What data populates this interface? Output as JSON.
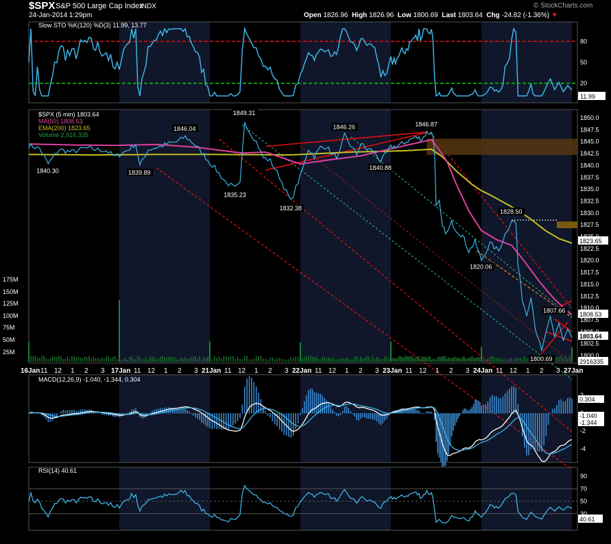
{
  "header": {
    "symbol": "$SPX",
    "name": "S&P 500 Large Cap Index",
    "exchange": "INDX",
    "timestamp": "24-Jan-2014 1:29pm",
    "open_label": "Open",
    "open": "1826.96",
    "high_label": "High",
    "high": "1826.96",
    "low_label": "Low",
    "low": "1800.69",
    "last_label": "Last",
    "last": "1803.64",
    "chg_label": "Chg",
    "chg": "-24.82 (-1.36%)",
    "chg_arrow": "▼",
    "watermark": "© StockCharts.com"
  },
  "colors": {
    "background": "#000000",
    "shade": "#10172a",
    "price": "#3fb6e8",
    "ma50": "#e040a0",
    "ema200": "#c8c020",
    "trend_red": "#e01010",
    "trend_teal": "#20a080",
    "overbought": "#e01010",
    "oversold": "#10c010"
  },
  "sto": {
    "legend": "Slow STO %K(120) %D(3)",
    "k": "11.99",
    "d": "13.77",
    "ticks": [
      "80",
      "50",
      "20"
    ],
    "last_badge": "11.99"
  },
  "price_panel": {
    "legend_spx": "$SPX (5 min) 1803.64",
    "legend_ma": "MA(50) 1808.53",
    "legend_ema": "EMA(200) 1823.65",
    "legend_vol": "Volume 2,916,335",
    "ticks": [
      "1850.0",
      "1847.5",
      "1845.0",
      "1842.5",
      "1840.0",
      "1837.5",
      "1835.0",
      "1832.5",
      "1830.0",
      "1827.5",
      "1825.0",
      "1822.5",
      "1820.0",
      "1817.5",
      "1815.0",
      "1812.5",
      "1810.0",
      "1807.5",
      "1805.0",
      "1802.5",
      "1800.0"
    ],
    "vol_ticks": [
      "175M",
      "150M",
      "125M",
      "100M",
      "75M",
      "50M",
      "25M"
    ],
    "badges": {
      "ema": "1823.65",
      "ma": "1808.53",
      "last": "1803.64",
      "vol": "2916335"
    },
    "annotations": [
      {
        "text": "1840.30",
        "v": 1840.3,
        "i": 9
      },
      {
        "text": "1839.89",
        "v": 1839.9,
        "i": 52
      },
      {
        "text": "1846.04",
        "v": 1846.0,
        "i": 74
      },
      {
        "text": "1835.23",
        "v": 1835.2,
        "i": 97
      },
      {
        "text": "1849.31",
        "v": 1849.3,
        "i": 101
      },
      {
        "text": "1832.38",
        "v": 1832.4,
        "i": 121
      },
      {
        "text": "1846.26",
        "v": 1846.3,
        "i": 147
      },
      {
        "text": "1840.88",
        "v": 1840.9,
        "i": 165
      },
      {
        "text": "1846.87",
        "v": 1846.9,
        "i": 193
      },
      {
        "text": "1828.50",
        "v": 1828.5,
        "i": 242
      },
      {
        "text": "1820.06",
        "v": 1820.1,
        "i": 228
      },
      {
        "text": "1807.66",
        "v": 1807.7,
        "i": 262
      },
      {
        "text": "1800.69",
        "v": 1800.7,
        "i": 256
      }
    ]
  },
  "x_axis": {
    "labels": [
      {
        "t": "16Jan",
        "i": 0,
        "b": true
      },
      {
        "t": "11",
        "i": 5
      },
      {
        "t": "12",
        "i": 10
      },
      {
        "t": "1",
        "i": 16
      },
      {
        "t": "2",
        "i": 21
      },
      {
        "t": "3",
        "i": 27
      },
      {
        "t": "17Jan",
        "i": 33,
        "b": true
      },
      {
        "t": "11",
        "i": 39
      },
      {
        "t": "12",
        "i": 44
      },
      {
        "t": "1",
        "i": 50
      },
      {
        "t": "2",
        "i": 55
      },
      {
        "t": "3",
        "i": 61
      },
      {
        "t": "21Jan",
        "i": 66,
        "b": true
      },
      {
        "t": "11",
        "i": 72
      },
      {
        "t": "12",
        "i": 77
      },
      {
        "t": "1",
        "i": 83
      },
      {
        "t": "2",
        "i": 88
      },
      {
        "t": "3",
        "i": 94
      },
      {
        "t": "22Jan",
        "i": 99,
        "b": true
      },
      {
        "t": "11",
        "i": 105
      },
      {
        "t": "12",
        "i": 110
      },
      {
        "t": "1",
        "i": 116
      },
      {
        "t": "2",
        "i": 121
      },
      {
        "t": "3",
        "i": 127
      },
      {
        "t": "23Jan",
        "i": 132,
        "b": true
      },
      {
        "t": "11",
        "i": 138
      },
      {
        "t": "12",
        "i": 143
      },
      {
        "t": "1",
        "i": 149
      },
      {
        "t": "2",
        "i": 154
      },
      {
        "t": "3",
        "i": 160
      },
      {
        "t": "24Jan",
        "i": 165,
        "b": true
      },
      {
        "t": "11",
        "i": 171
      },
      {
        "t": "12",
        "i": 176
      },
      {
        "t": "1",
        "i": 182
      },
      {
        "t": "2",
        "i": 187
      },
      {
        "t": "3",
        "i": 193
      },
      {
        "t": "27Jan",
        "i": 198,
        "b": true
      }
    ]
  },
  "macd": {
    "legend": "MACD(12,26,9)",
    "vals": "-1.040, -1.344, 0.304",
    "ticks": [
      "2",
      "0",
      "-2",
      "-4"
    ],
    "badges": {
      "hist": "0.304",
      "macd": "-1.040",
      "signal": "-1.344"
    }
  },
  "rsi": {
    "legend": "RSI(14)",
    "val": "40.61",
    "ticks": [
      "90",
      "70",
      "50",
      "30"
    ],
    "badge": "40.61"
  },
  "chart_data": {
    "type": "line",
    "title": "$SPX S&P 500 Large Cap Index INDX",
    "interval": "5 min",
    "x_range": [
      "16-Jan-2014",
      "27-Jan-2014"
    ],
    "ylim": [
      1798.5,
      1851.0
    ],
    "grid": false,
    "series": [
      {
        "name": "$SPX (5 min)",
        "anchors": [
          [
            0,
            1844.2
          ],
          [
            5,
            1843.6
          ],
          [
            9,
            1840.3
          ],
          [
            14,
            1843.3
          ],
          [
            20,
            1842.8
          ],
          [
            26,
            1843.6
          ],
          [
            32,
            1843.3
          ],
          [
            36,
            1843.1
          ],
          [
            40,
            1841.8
          ],
          [
            46,
            1843.2
          ],
          [
            50,
            1844.5
          ],
          [
            52,
            1839.9
          ],
          [
            56,
            1843.3
          ],
          [
            62,
            1844.0
          ],
          [
            66,
            1844.6
          ],
          [
            70,
            1845.0
          ],
          [
            74,
            1846.0
          ],
          [
            78,
            1844.7
          ],
          [
            83,
            1842.2
          ],
          [
            88,
            1839.5
          ],
          [
            93,
            1836.4
          ],
          [
            97,
            1835.2
          ],
          [
            99,
            1836.0
          ],
          [
            101,
            1849.3
          ],
          [
            103,
            1847.2
          ],
          [
            106,
            1845.0
          ],
          [
            109,
            1841.6
          ],
          [
            112,
            1841.0
          ],
          [
            116,
            1837.6
          ],
          [
            119,
            1834.4
          ],
          [
            121,
            1832.4
          ],
          [
            123,
            1835.2
          ],
          [
            126,
            1839.0
          ],
          [
            129,
            1843.5
          ],
          [
            132,
            1841.9
          ],
          [
            135,
            1843.8
          ],
          [
            138,
            1844.0
          ],
          [
            141,
            1842.2
          ],
          [
            144,
            1841.9
          ],
          [
            147,
            1846.3
          ],
          [
            150,
            1844.2
          ],
          [
            153,
            1842.3
          ],
          [
            155,
            1844.6
          ],
          [
            158,
            1843.4
          ],
          [
            161,
            1843.2
          ],
          [
            165,
            1840.9
          ],
          [
            170,
            1843.8
          ],
          [
            175,
            1844.2
          ],
          [
            180,
            1845.0
          ],
          [
            185,
            1845.9
          ],
          [
            190,
            1845.6
          ],
          [
            193,
            1846.9
          ],
          [
            196,
            1846.8
          ],
          [
            197,
            1846.1
          ],
          [
            198,
            1843.0
          ],
          [
            199,
            1831.3
          ],
          [
            201,
            1832.2
          ],
          [
            203,
            1827.0
          ],
          [
            206,
            1825.7
          ],
          [
            209,
            1828.0
          ],
          [
            212,
            1826.4
          ],
          [
            216,
            1825.2
          ],
          [
            220,
            1822.0
          ],
          [
            224,
            1823.9
          ],
          [
            228,
            1820.1
          ],
          [
            232,
            1823.6
          ],
          [
            236,
            1822.0
          ],
          [
            239,
            1825.5
          ],
          [
            242,
            1828.5
          ],
          [
            244,
            1827.8
          ],
          [
            245,
            1819.0
          ],
          [
            247,
            1812.0
          ],
          [
            249,
            1808.5
          ],
          [
            251,
            1812.7
          ],
          [
            253,
            1806.0
          ],
          [
            256,
            1800.7
          ],
          [
            258,
            1805.0
          ],
          [
            260,
            1807.7
          ],
          [
            262,
            1803.8
          ],
          [
            264,
            1807.0
          ],
          [
            266,
            1803.2
          ],
          [
            268,
            1805.5
          ],
          [
            270,
            1803.6
          ]
        ]
      },
      {
        "name": "MA(50)",
        "anchors": [
          [
            0,
            1844.5
          ],
          [
            20,
            1844.3
          ],
          [
            40,
            1844.2
          ],
          [
            60,
            1844.4
          ],
          [
            80,
            1843.8
          ],
          [
            100,
            1842.6
          ],
          [
            110,
            1842.8
          ],
          [
            125,
            1840.3
          ],
          [
            140,
            1841.2
          ],
          [
            155,
            1842.0
          ],
          [
            170,
            1843.5
          ],
          [
            185,
            1844.6
          ],
          [
            196,
            1845.4
          ],
          [
            200,
            1843.7
          ],
          [
            206,
            1840.8
          ],
          [
            212,
            1836.0
          ],
          [
            220,
            1830.4
          ],
          [
            228,
            1826.3
          ],
          [
            235,
            1824.4
          ],
          [
            242,
            1823.2
          ],
          [
            248,
            1819.8
          ],
          [
            255,
            1815.5
          ],
          [
            262,
            1811.8
          ],
          [
            270,
            1808.53
          ]
        ]
      },
      {
        "name": "EMA(200)",
        "anchors": [
          [
            0,
            1842.3
          ],
          [
            30,
            1842.2
          ],
          [
            60,
            1842.3
          ],
          [
            90,
            1842.3
          ],
          [
            120,
            1842.2
          ],
          [
            150,
            1842.8
          ],
          [
            180,
            1843.1
          ],
          [
            196,
            1843.4
          ],
          [
            203,
            1841.8
          ],
          [
            212,
            1838.8
          ],
          [
            222,
            1836.0
          ],
          [
            232,
            1833.8
          ],
          [
            242,
            1831.3
          ],
          [
            250,
            1829.0
          ],
          [
            258,
            1826.2
          ],
          [
            264,
            1824.6
          ],
          [
            270,
            1823.65
          ]
        ]
      }
    ],
    "indicators": {
      "slow_sto": {
        "k": 11.99,
        "d": 13.77,
        "overbought": 80,
        "oversold": 20
      },
      "macd": {
        "macd": -1.04,
        "signal": -1.344,
        "histogram": 0.304
      },
      "rsi": {
        "value": 40.61
      }
    },
    "volume": {
      "last": 2916335,
      "unit": "shares"
    }
  }
}
